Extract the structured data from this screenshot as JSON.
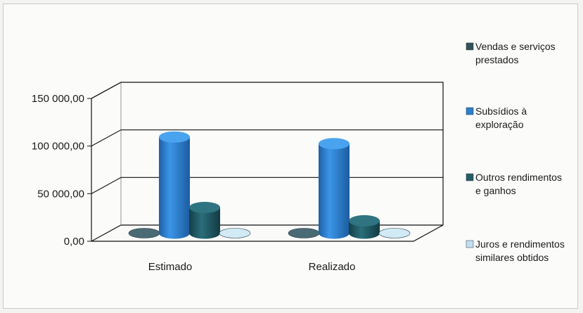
{
  "chart_data": {
    "type": "bar",
    "subtype": "3d-cylinder-clustered",
    "categories": [
      "Estimado",
      "Realizado"
    ],
    "series": [
      {
        "name": "Vendas e serviços prestados",
        "values": [
          0,
          0
        ],
        "color": "#2f4f5a"
      },
      {
        "name": "Subsídios à exploração",
        "values": [
          101000,
          94000
        ],
        "color": "#2a7fd0"
      },
      {
        "name": "Outros rendimentos e ganhos",
        "values": [
          27000,
          13000
        ],
        "color": "#1f5f6c"
      },
      {
        "name": "Juros e rendimentos similares obtidos",
        "values": [
          0,
          0
        ],
        "color": "#a9cfe6"
      }
    ],
    "yticks": [
      "150 000,00",
      "100 000,00",
      "50 000,00",
      "0,00"
    ],
    "ylim": [
      0,
      150000
    ],
    "legend_position": "right",
    "grid": true
  }
}
